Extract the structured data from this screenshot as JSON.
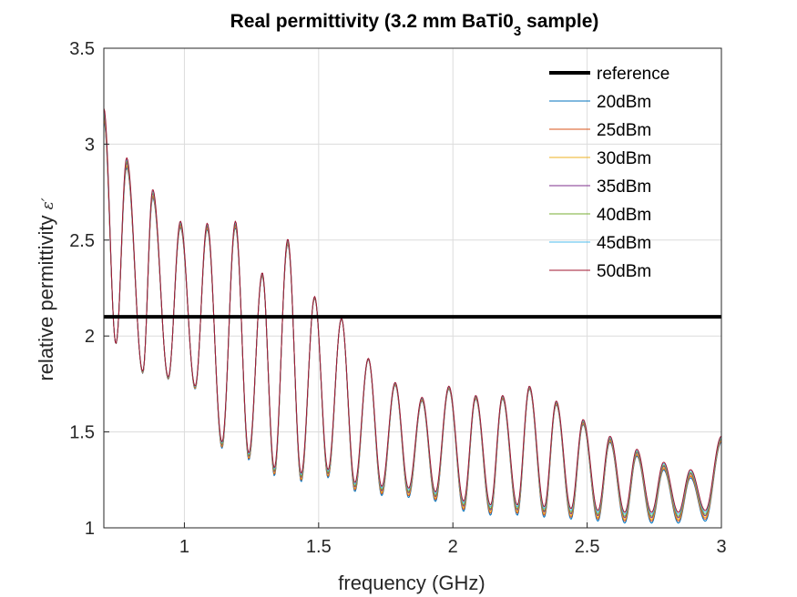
{
  "chart_data": {
    "type": "line",
    "title": "Real permittivity (3.2 mm BaTi0",
    "title_sub": "3",
    "title_tail": " sample)",
    "xlabel": "frequency (GHz)",
    "ylabel": "relative permittivity ",
    "ylabel_symbol": "ε′",
    "xlim": [
      0.7,
      3.0
    ],
    "ylim": [
      1.0,
      3.5
    ],
    "xticks": [
      1,
      1.5,
      2,
      2.5,
      3
    ],
    "xtick_labels": [
      "1",
      "1.5",
      "2",
      "2.5",
      "3"
    ],
    "yticks": [
      1,
      1.5,
      2,
      2.5,
      3,
      3.5
    ],
    "ytick_labels": [
      "1",
      "1.5",
      "2",
      "2.5",
      "3",
      "3.5"
    ],
    "grid": true,
    "legend_position": "top-right",
    "reference": {
      "name": "reference",
      "value": 2.1,
      "color": "#000000"
    },
    "peaks": [
      [
        0.7,
        3.15
      ],
      [
        0.785,
        2.9
      ],
      [
        0.882,
        2.74
      ],
      [
        0.985,
        2.58
      ],
      [
        1.085,
        2.57
      ],
      [
        1.19,
        2.58
      ],
      [
        1.29,
        2.32
      ],
      [
        1.385,
        2.49
      ],
      [
        1.485,
        2.2
      ],
      [
        1.585,
        2.09
      ],
      [
        1.685,
        1.88
      ],
      [
        1.785,
        1.75
      ],
      [
        1.885,
        1.67
      ],
      [
        1.985,
        1.73
      ],
      [
        2.085,
        1.68
      ],
      [
        2.185,
        1.68
      ],
      [
        2.285,
        1.73
      ],
      [
        2.385,
        1.65
      ],
      [
        2.485,
        1.55
      ],
      [
        2.585,
        1.46
      ],
      [
        2.685,
        1.39
      ],
      [
        2.785,
        1.32
      ],
      [
        2.885,
        1.28
      ],
      [
        3.0,
        1.46
      ]
    ],
    "troughs": [
      [
        0.745,
        1.96
      ],
      [
        0.845,
        1.81
      ],
      [
        0.94,
        1.78
      ],
      [
        1.04,
        1.73
      ],
      [
        1.14,
        1.43
      ],
      [
        1.24,
        1.37
      ],
      [
        1.335,
        1.29
      ],
      [
        1.435,
        1.26
      ],
      [
        1.535,
        1.28
      ],
      [
        1.635,
        1.21
      ],
      [
        1.735,
        1.19
      ],
      [
        1.835,
        1.18
      ],
      [
        1.935,
        1.16
      ],
      [
        2.04,
        1.11
      ],
      [
        2.14,
        1.09
      ],
      [
        2.24,
        1.09
      ],
      [
        2.34,
        1.08
      ],
      [
        2.44,
        1.07
      ],
      [
        2.54,
        1.06
      ],
      [
        2.64,
        1.05
      ],
      [
        2.74,
        1.05
      ],
      [
        2.84,
        1.05
      ],
      [
        2.94,
        1.06
      ]
    ],
    "series": [
      {
        "name": "20dBm",
        "color": "#0072BD",
        "offset": -0.03
      },
      {
        "name": "25dBm",
        "color": "#D95319",
        "offset": -0.018
      },
      {
        "name": "30dBm",
        "color": "#EDB120",
        "offset": -0.008
      },
      {
        "name": "35dBm",
        "color": "#7E2F8E",
        "offset": 0.003
      },
      {
        "name": "40dBm",
        "color": "#77AC30",
        "offset": 0.012
      },
      {
        "name": "45dBm",
        "color": "#4DBEEE",
        "offset": 0.024
      },
      {
        "name": "50dBm",
        "color": "#A2142F",
        "offset": 0.036
      }
    ]
  }
}
